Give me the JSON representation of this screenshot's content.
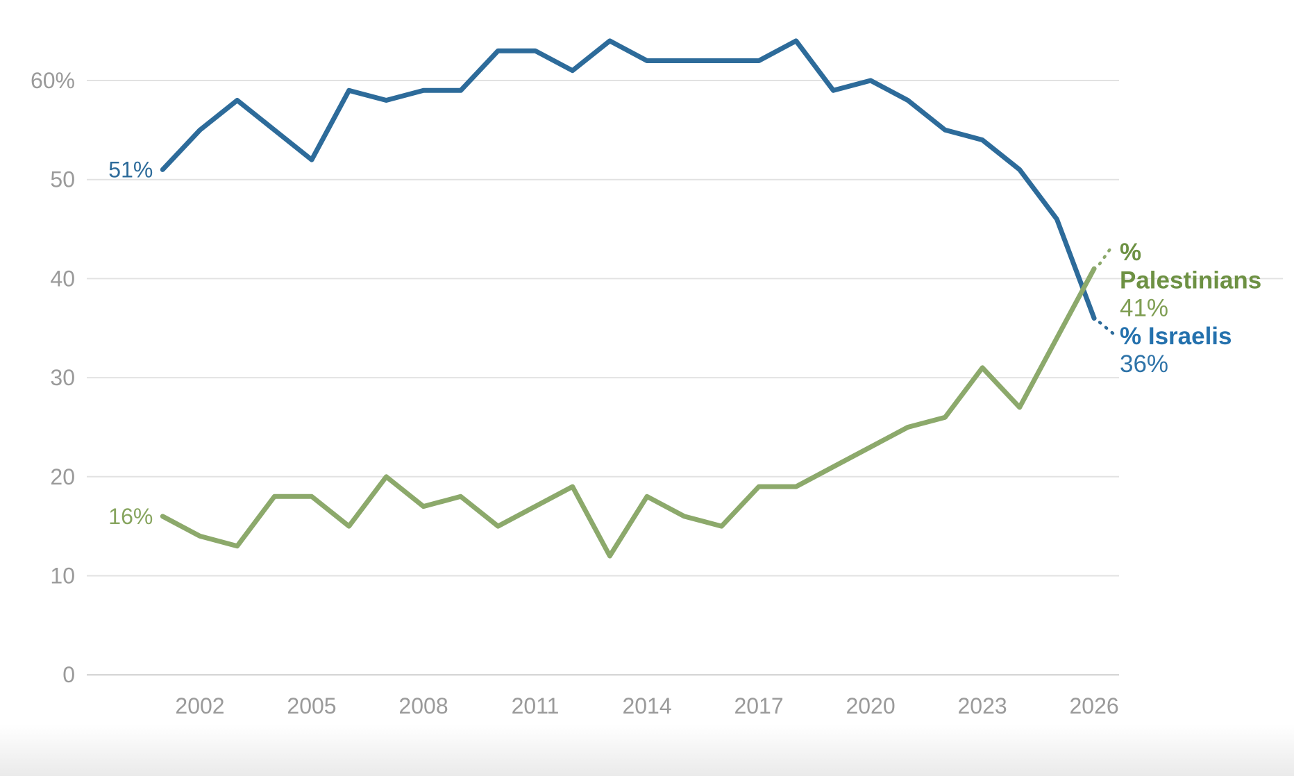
{
  "page": {
    "background": "#ffffff"
  },
  "chart_data": {
    "type": "line",
    "title": "",
    "xlabel": "",
    "ylabel": "",
    "x": [
      2001,
      2002,
      2003,
      2004,
      2005,
      2006,
      2007,
      2008,
      2009,
      2010,
      2011,
      2012,
      2013,
      2014,
      2015,
      2016,
      2017,
      2018,
      2019,
      2020,
      2021,
      2022,
      2023,
      2024,
      2025,
      2026
    ],
    "series": [
      {
        "name": "% Israelis",
        "values": [
          51,
          55,
          58,
          55,
          52,
          59,
          58,
          59,
          59,
          63,
          63,
          61,
          64,
          62,
          62,
          62,
          62,
          64,
          59,
          60,
          58,
          55,
          54,
          51,
          46,
          36
        ],
        "line_color": "#2d6b9a",
        "start_label": "51%",
        "start_label_color": "#2d6b9a",
        "end_label": "36%",
        "legend_name_lines": [
          "% Israelis"
        ],
        "legend_name_color": "#2471ad",
        "legend_value_color": "#2e73a8"
      },
      {
        "name": "% Palestinians",
        "values": [
          16,
          14,
          13,
          18,
          18,
          15,
          20,
          17,
          18,
          15,
          17,
          19,
          12,
          18,
          16,
          15,
          19,
          19,
          21,
          23,
          25,
          26,
          31,
          27,
          34,
          41
        ],
        "line_color": "#8ca96b",
        "start_label": "16%",
        "start_label_color": "#87a55f",
        "end_label": "41%",
        "legend_name_lines": [
          "%",
          "Palestinians"
        ],
        "legend_name_color": "#6d9143",
        "legend_value_color": "#7f9e53"
      }
    ],
    "legend_order": [
      "% Palestinians",
      "% Israelis"
    ],
    "legend_position": "right-end-labels",
    "x_ticks": [
      {
        "value": 2002,
        "label": "2002"
      },
      {
        "value": 2005,
        "label": "2005"
      },
      {
        "value": 2008,
        "label": "2008"
      },
      {
        "value": 2011,
        "label": "2011"
      },
      {
        "value": 2014,
        "label": "2014"
      },
      {
        "value": 2017,
        "label": "2017"
      },
      {
        "value": 2020,
        "label": "2020"
      },
      {
        "value": 2023,
        "label": "2023"
      },
      {
        "value": 2026,
        "label": "2026"
      }
    ],
    "y_ticks": [
      {
        "value": 60,
        "label": "60%"
      },
      {
        "value": 50,
        "label": "50"
      },
      {
        "value": 40,
        "label": "40",
        "extended": true
      },
      {
        "value": 30,
        "label": "30"
      },
      {
        "value": 20,
        "label": "20"
      },
      {
        "value": 10,
        "label": "10"
      },
      {
        "value": 0,
        "label": "0",
        "zero": true
      }
    ],
    "xlim": [
      2001,
      2026
    ],
    "ylim": [
      0,
      67
    ],
    "grid": "horizontal",
    "gridline_color": "#e2e2e2",
    "zero_line_color": "#cdcdcd",
    "axis_label_color": "#9a9a9a"
  }
}
